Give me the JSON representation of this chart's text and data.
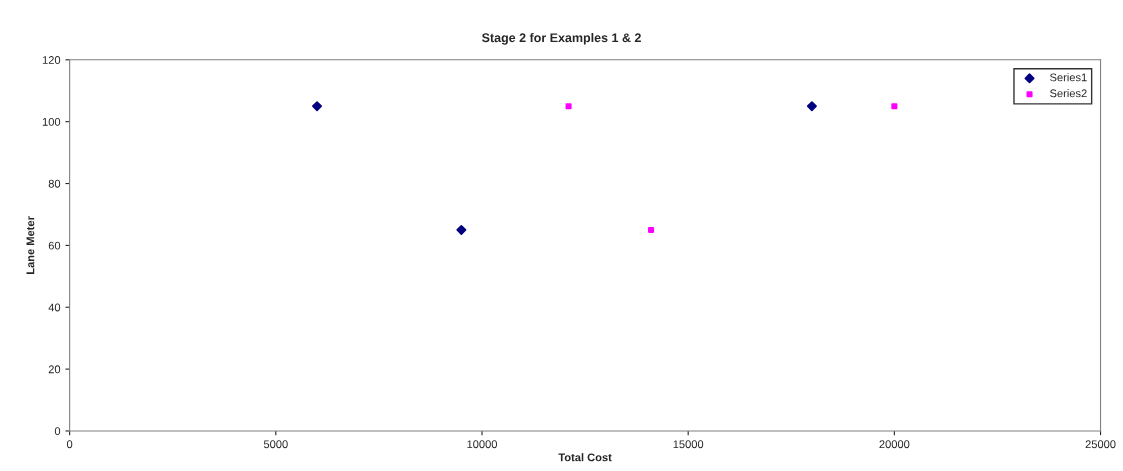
{
  "chart_data": {
    "type": "scatter",
    "title": "Stage 2 for Examples 1 & 2",
    "xlabel": "Total Cost",
    "ylabel": "Lane Meter",
    "series": [
      {
        "name": "Series1",
        "color": "#000080",
        "marker": "diamond",
        "x": [
          6000,
          9500,
          18000
        ],
        "values": [
          105,
          65,
          105
        ]
      },
      {
        "name": "Series2",
        "color": "#ff00ff",
        "marker": "square",
        "x": [
          12100,
          14100,
          20000
        ],
        "values": [
          105,
          65,
          105
        ]
      }
    ],
    "xlim": [
      0,
      25000
    ],
    "xticks": [
      0,
      5000,
      10000,
      15000,
      20000,
      25000
    ],
    "ylim": [
      0,
      120
    ],
    "yticks": [
      0,
      20,
      40,
      60,
      80,
      100,
      120
    ],
    "grid": false,
    "legend": "top right"
  }
}
